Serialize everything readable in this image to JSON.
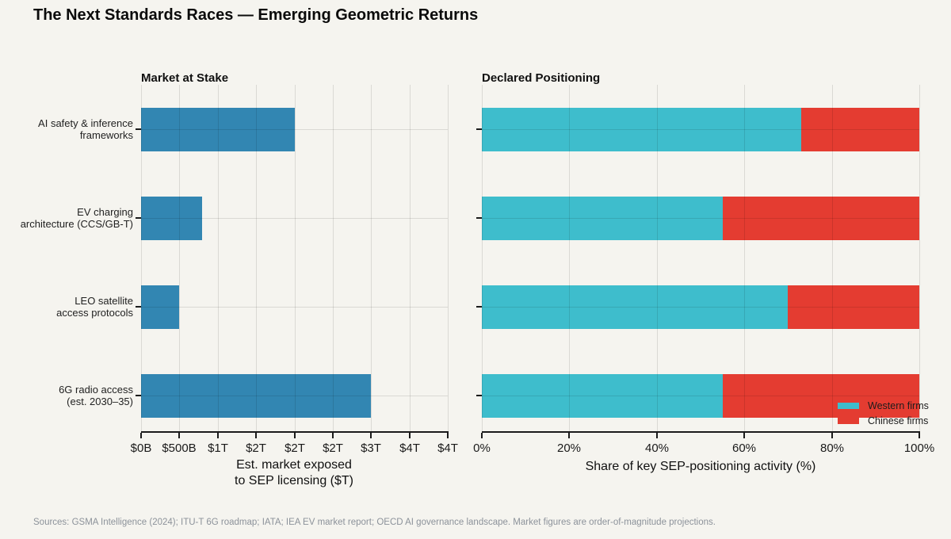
{
  "title": "The Next Standards Races — Emerging Geometric Returns",
  "footer": "Sources: GSMA Intelligence (2024); ITU-T 6G roadmap; IATA; IEA EV market report; OECD AI governance landscape. Market figures are order-of-magnitude projections.",
  "colors": {
    "background": "#f5f4ef",
    "market_bar_blue": "#3286b2",
    "western_cyan": "#3ebdcc",
    "chinese_red": "#e43c31",
    "axis_dark": "#1b1b1b"
  },
  "category_display_lines": [
    [
      "AI safety & inference",
      "frameworks"
    ],
    [
      "EV charging",
      "architecture (CCS/GB-T)"
    ],
    [
      "LEO satellite",
      "access protocols"
    ],
    [
      "6G radio access",
      "(est. 2030–35)"
    ]
  ],
  "chart_data": [
    {
      "type": "bar",
      "orientation": "horizontal",
      "panel": "left",
      "title": "Market at Stake",
      "categories": [
        "AI safety & inference frameworks",
        "EV charging architecture (CCS/GB-T)",
        "LEO satellite access protocols",
        "6G radio access (est. 2030–35)"
      ],
      "values_usd_trillions": [
        2.0,
        0.8,
        0.5,
        3.0
      ],
      "bar_color": "#3286b2",
      "xlabel_line1": "Est. market exposed",
      "xlabel_line2": "to SEP licensing ($T)",
      "xlim_trillions": [
        0,
        4
      ],
      "xticks_trillions": [
        0,
        0.5,
        1,
        1.5,
        2,
        2.5,
        3,
        3.5,
        4
      ],
      "xtick_labels": [
        "$0B",
        "$500B",
        "$1T",
        "$2T",
        "$2T",
        "$2T",
        "$3T",
        "$4T",
        "$4T"
      ],
      "grid": "both"
    },
    {
      "type": "bar",
      "orientation": "horizontal",
      "stacked": true,
      "panel": "right",
      "title": "Declared Positioning",
      "categories": [
        "AI safety & inference frameworks",
        "EV charging architecture (CCS/GB-T)",
        "LEO satellite access protocols",
        "6G radio access (est. 2030–35)"
      ],
      "series": [
        {
          "name": "Western firms",
          "color": "#3ebdcc",
          "values_pct": [
            73,
            55,
            70,
            55
          ]
        },
        {
          "name": "Chinese firms",
          "color": "#e43c31",
          "values_pct": [
            27,
            45,
            30,
            45
          ]
        }
      ],
      "xlabel": "Share of key SEP-positioning activity (%)",
      "xlim_pct": [
        0,
        100
      ],
      "xticks_pct": [
        0,
        20,
        40,
        60,
        80,
        100
      ],
      "xtick_labels": [
        "0%",
        "20%",
        "40%",
        "60%",
        "80%",
        "100%"
      ],
      "legend_position": "lower right",
      "grid": "both"
    }
  ]
}
